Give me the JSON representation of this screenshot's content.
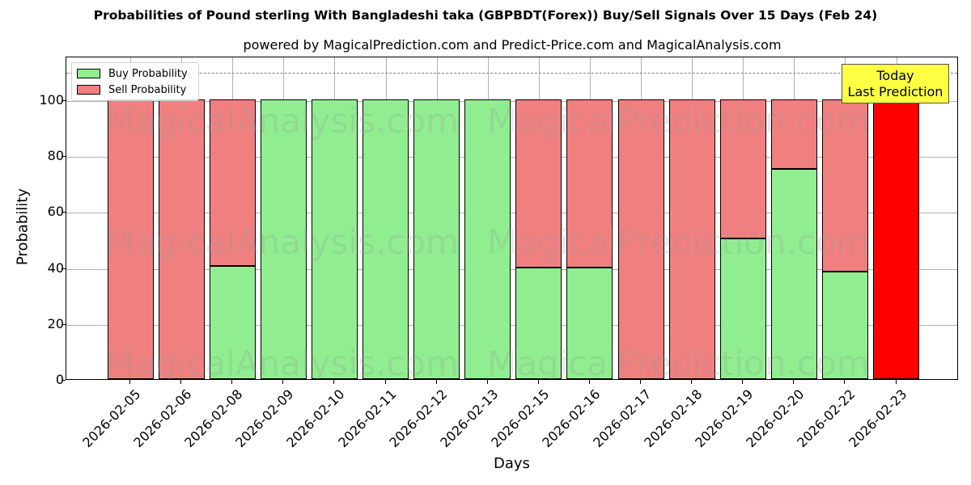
{
  "title": "Probabilities of Pound sterling With Bangladeshi taka (GBPBDT(Forex)) Buy/Sell Signals Over 15 Days (Feb 24)",
  "subtitle": "powered by MagicalPrediction.com and Predict-Price.com and MagicalAnalysis.com",
  "legend": {
    "buy_label": "Buy Probability",
    "sell_label": "Sell Probability"
  },
  "annotation": {
    "line1": "Today",
    "line2": "Last Prediction"
  },
  "axes": {
    "xlabel": "Days",
    "ylabel": "Probability",
    "yticks": [
      "0",
      "20",
      "40",
      "60",
      "80",
      "100"
    ]
  },
  "watermarks": [
    "MagicalAnalysis.com",
    "MagicalPrediction.com"
  ],
  "colors": {
    "buy": "#90ee90",
    "sell": "#f08080",
    "today": "#ff0000",
    "annotation_bg": "#ffff44",
    "dashed_line": "#808080"
  },
  "chart_data": {
    "type": "bar",
    "stacked": true,
    "title": "Probabilities of Pound sterling With Bangladeshi taka (GBPBDT(Forex)) Buy/Sell Signals Over 15 Days (Feb 24)",
    "subtitle": "powered by MagicalPrediction.com and Predict-Price.com and MagicalAnalysis.com",
    "xlabel": "Days",
    "ylabel": "Probability",
    "ylim": [
      0,
      115
    ],
    "yticks": [
      0,
      20,
      40,
      60,
      80,
      100
    ],
    "grid": true,
    "legend_position": "upper left",
    "reference_line": {
      "y": 110,
      "style": "dashed",
      "color": "#808080"
    },
    "annotations": [
      {
        "text": "Today\nLast Prediction",
        "x": "2026-02-23",
        "y": 105
      }
    ],
    "categories": [
      "2026-02-05",
      "2026-02-06",
      "2026-02-08",
      "2026-02-09",
      "2026-02-10",
      "2026-02-11",
      "2026-02-12",
      "2026-02-13",
      "2026-02-15",
      "2026-02-16",
      "2026-02-17",
      "2026-02-18",
      "2026-02-19",
      "2026-02-20",
      "2026-02-22",
      "2026-02-23"
    ],
    "series": [
      {
        "name": "Buy Probability",
        "color": "#90ee90",
        "values": [
          0,
          0,
          40.5,
          100,
          100,
          100,
          100,
          100,
          39.9,
          39.9,
          0,
          0,
          50.3,
          75.1,
          38.4,
          0
        ]
      },
      {
        "name": "Sell Probability",
        "color": "#f08080",
        "values": [
          100,
          100,
          59.5,
          0,
          0,
          0,
          0,
          0,
          60.1,
          60.1,
          100,
          100,
          49.7,
          24.9,
          61.6,
          100
        ]
      }
    ],
    "highlight": {
      "category": "2026-02-23",
      "color": "#ff0000",
      "note": "Today / Last Prediction"
    }
  }
}
